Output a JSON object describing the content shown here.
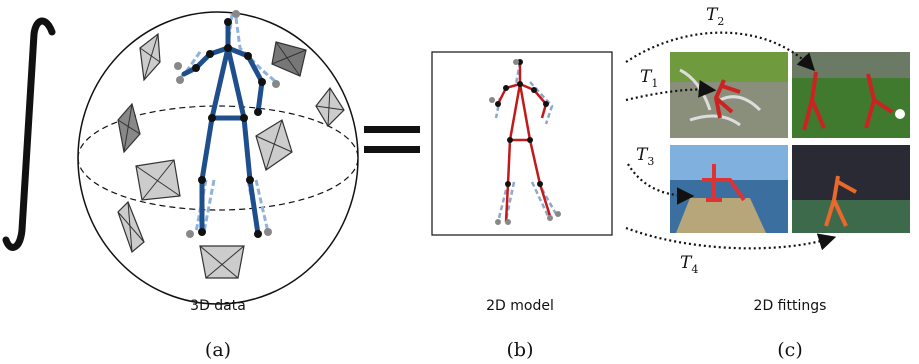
{
  "panels": [
    {
      "caption": "3D data",
      "label": "(a)"
    },
    {
      "caption": "2D model",
      "label": "(b)"
    },
    {
      "caption": "2D fittings",
      "label": "(c)"
    }
  ],
  "transforms": [
    {
      "symbol": "T",
      "index": "1"
    },
    {
      "symbol": "T",
      "index": "2"
    },
    {
      "symbol": "T",
      "index": "3"
    },
    {
      "symbol": "T",
      "index": "4"
    }
  ]
}
